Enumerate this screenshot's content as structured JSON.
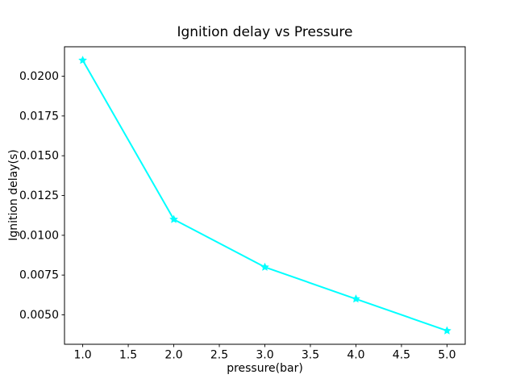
{
  "chart_data": {
    "type": "line",
    "title": "Ignition delay vs Pressure",
    "xlabel": "pressure(bar)",
    "ylabel": "Ignition delay(s)",
    "x": [
      1,
      2,
      3,
      4,
      5
    ],
    "y": [
      0.021,
      0.011,
      0.008,
      0.006,
      0.004
    ],
    "series_color": "#00ffff",
    "marker": "star",
    "line_width": 2,
    "xlim": [
      0.8,
      5.2
    ],
    "ylim": [
      0.00315,
      0.02185
    ],
    "xticks": [
      1.0,
      1.5,
      2.0,
      2.5,
      3.0,
      3.5,
      4.0,
      4.5,
      5.0
    ],
    "xtick_labels": [
      "1.0",
      "1.5",
      "2.0",
      "2.5",
      "3.0",
      "3.5",
      "4.0",
      "4.5",
      "5.0"
    ],
    "yticks": [
      0.005,
      0.0075,
      0.01,
      0.0125,
      0.015,
      0.0175,
      0.02
    ],
    "ytick_labels": [
      "0.0050",
      "0.0075",
      "0.0100",
      "0.0125",
      "0.0150",
      "0.0175",
      "0.0200"
    ],
    "grid": false,
    "legend": null,
    "background_color": "#ffffff",
    "spine_color": "#000000"
  }
}
